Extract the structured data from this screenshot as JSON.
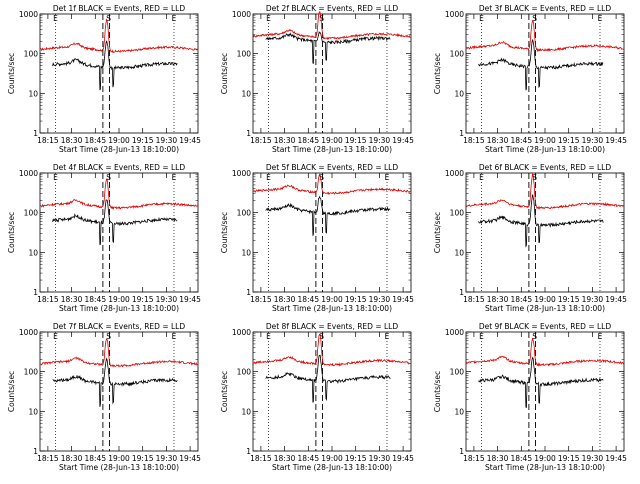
{
  "chart_data": {
    "type": "line",
    "yscale": "log",
    "ylim": [
      1,
      1000
    ],
    "ytick_labels": [
      "1",
      "10",
      "100",
      "1000"
    ],
    "xtick_labels": [
      "18:15",
      "18:30",
      "18:45",
      "19:00",
      "19:15",
      "19:30",
      "19:45"
    ],
    "ylabel": "Counts/sec",
    "xlabel": "Start Time (28-Jun-13 18:10:00)",
    "marker_labels": [
      "E",
      "S",
      "E"
    ],
    "grid": false,
    "colors": {
      "events": "#000000",
      "lld": "#e00000"
    },
    "panels": [
      {
        "title": "Det 1f BLACK = Events, RED = LLD",
        "lld_level": 130,
        "events_level": 50,
        "peak": 700
      },
      {
        "title": "Det 2f BLACK = Events, RED = LLD",
        "lld_level": 280,
        "events_level": 220,
        "peak": 1200
      },
      {
        "title": "Det 3f BLACK = Events, RED = LLD",
        "lld_level": 140,
        "events_level": 50,
        "peak": 700
      },
      {
        "title": "Det 4f BLACK = Events, RED = LLD",
        "lld_level": 150,
        "events_level": 60,
        "peak": 700
      },
      {
        "title": "Det 5f BLACK = Events, RED = LLD",
        "lld_level": 350,
        "events_level": 110,
        "peak": 900
      },
      {
        "title": "Det 6f BLACK = Events, RED = LLD",
        "lld_level": 150,
        "events_level": 55,
        "peak": 900
      },
      {
        "title": "Det 7f BLACK = Events, RED = LLD",
        "lld_level": 160,
        "events_level": 55,
        "peak": 700
      },
      {
        "title": "Det 8f BLACK = Events, RED = LLD",
        "lld_level": 170,
        "events_level": 65,
        "peak": 900
      },
      {
        "title": "Det 9f BLACK = Events, RED = LLD",
        "lld_level": 170,
        "events_level": 55,
        "peak": 700
      }
    ]
  }
}
